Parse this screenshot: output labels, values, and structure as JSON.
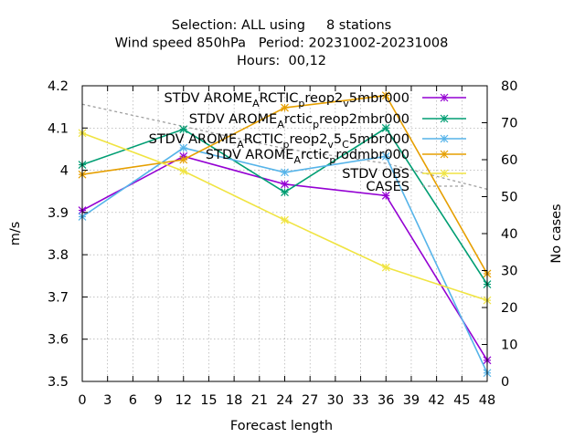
{
  "chart_data": {
    "type": "line",
    "title_lines": [
      "Selection: ALL using     8 stations",
      "Wind speed 850hPa   Period: 20231002-20231008",
      "Hours:  00,12"
    ],
    "xlabel": "Forecast length",
    "ylabel": "m/s",
    "y2label": "No cases",
    "xlim": [
      0,
      48
    ],
    "ylim": [
      3.5,
      4.2
    ],
    "y2lim": [
      0,
      80
    ],
    "x_ticks": [
      0,
      3,
      6,
      9,
      12,
      15,
      18,
      21,
      24,
      27,
      30,
      33,
      36,
      39,
      42,
      45,
      48
    ],
    "y_ticks": [
      "3.5",
      "3.6",
      "3.7",
      "3.8",
      "3.9",
      "4",
      "4.1",
      "4.2"
    ],
    "y2_ticks": [
      "0",
      "10",
      "20",
      "30",
      "40",
      "50",
      "60",
      "70",
      "80"
    ],
    "x": [
      0,
      12,
      24,
      36,
      48
    ],
    "series": [
      {
        "name": "STDV AROME_ARCTIC_reop2_v5mbr000",
        "label_parts": [
          "STDV AROME",
          "A",
          "RCTIC",
          "p",
          "reop2",
          "v",
          "5mbr000"
        ],
        "color": "#9400d3",
        "values": [
          3.905,
          4.033,
          3.967,
          3.94,
          3.55
        ]
      },
      {
        "name": "STDV AROME_Arctic_preop2mbr000",
        "label_parts": [
          "STDV AROME",
          "A",
          "rctic",
          "p",
          "reop2mbr000"
        ],
        "color": "#009e73",
        "values": [
          4.013,
          4.097,
          3.948,
          4.1,
          3.73
        ]
      },
      {
        "name": "STDV AROME_ARCTIC_preop2_v5_C5mbr000",
        "label_parts": [
          "STDV AROME",
          "A",
          "RCTIC",
          "p",
          "reop2",
          "v",
          "5",
          "C",
          "5mbr000"
        ],
        "color": "#56b4e9",
        "values": [
          3.89,
          4.053,
          3.995,
          4.033,
          3.52
        ]
      },
      {
        "name": "STDV AROME_Arctic_prodmbr000",
        "label_parts": [
          "STDV AROME",
          "A",
          "rctic",
          "p",
          "rodmbr000"
        ],
        "color": "#e69f00",
        "values": [
          3.99,
          4.025,
          4.148,
          4.177,
          3.755
        ]
      },
      {
        "name": "STDV OBS",
        "label_parts": [
          "STDV OBS"
        ],
        "color": "#f0e442",
        "values": [
          4.088,
          3.998,
          3.882,
          3.77,
          3.692
        ]
      }
    ],
    "cases": {
      "name": "CASES",
      "color": "#a0a0a0",
      "x": [
        0,
        12,
        24,
        36,
        48
      ],
      "values": [
        75,
        69,
        63,
        59,
        52
      ]
    }
  }
}
